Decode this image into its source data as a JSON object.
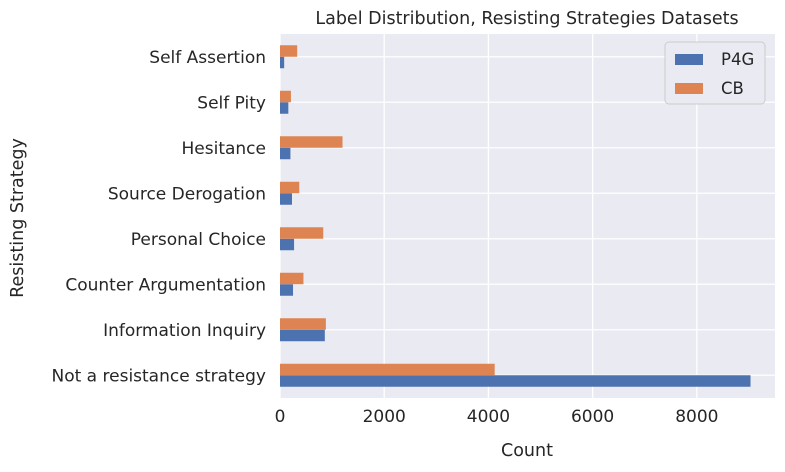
{
  "chart_data": {
    "type": "bar",
    "orientation": "horizontal",
    "title": "Label Distribution, Resisting Strategies Datasets",
    "xlabel": "Count",
    "ylabel": "Resisting Strategy",
    "categories": [
      "Self Assertion",
      "Self Pity",
      "Hesitance",
      "Source Derogation",
      "Personal Choice",
      "Counter Argumentation",
      "Information Inquiry",
      "Not a resistance strategy"
    ],
    "series": [
      {
        "name": "P4G",
        "color": "#4c72b0",
        "values": [
          80,
          160,
          200,
          230,
          270,
          250,
          860,
          9030
        ]
      },
      {
        "name": "CB",
        "color": "#dd8452",
        "values": [
          330,
          210,
          1200,
          370,
          830,
          450,
          880,
          4120
        ]
      }
    ],
    "xlim": [
      0,
      9500
    ],
    "xticks": [
      0,
      2000,
      4000,
      6000,
      8000
    ],
    "grid": true,
    "legend_position": "top-right",
    "plot_background": "#eaeaf2"
  }
}
